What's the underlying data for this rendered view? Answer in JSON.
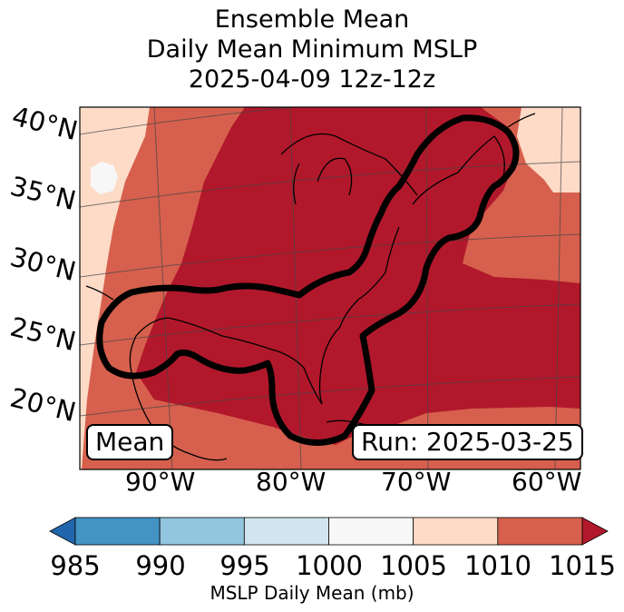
{
  "title": {
    "line1": "Ensemble Mean",
    "line2": "Daily Mean Minimum MSLP",
    "line3": "2025-04-09 12z-12z"
  },
  "map": {
    "latitude_labels": [
      "40°N",
      "35°N",
      "30°N",
      "25°N",
      "20°N"
    ],
    "longitude_labels": [
      "90°W",
      "80°W",
      "70°W",
      "60°W"
    ],
    "mean_box": "Mean",
    "run_box": "Run: 2025-03-25",
    "field_colors": {
      "1005-1010": "#fddbc7",
      "1010-1015": "#d6604d",
      "1015+": "#b2182b",
      "1000-1005": "#f7f7f7"
    }
  },
  "colorbar": {
    "ticks": [
      "985",
      "990",
      "995",
      "1000",
      "1005",
      "1010",
      "1015"
    ],
    "label": "MSLP Daily Mean (mb)",
    "bins": [
      {
        "range": "<985",
        "color": "#2166ac"
      },
      {
        "range": "985-990",
        "color": "#4393c3"
      },
      {
        "range": "990-995",
        "color": "#92c5de"
      },
      {
        "range": "995-1000",
        "color": "#d1e5f0"
      },
      {
        "range": "1000-1005",
        "color": "#f7f7f7"
      },
      {
        "range": "1005-1010",
        "color": "#fddbc7"
      },
      {
        "range": "1010-1015",
        "color": "#d6604d"
      },
      {
        "range": ">1015",
        "color": "#b2182b"
      }
    ]
  }
}
